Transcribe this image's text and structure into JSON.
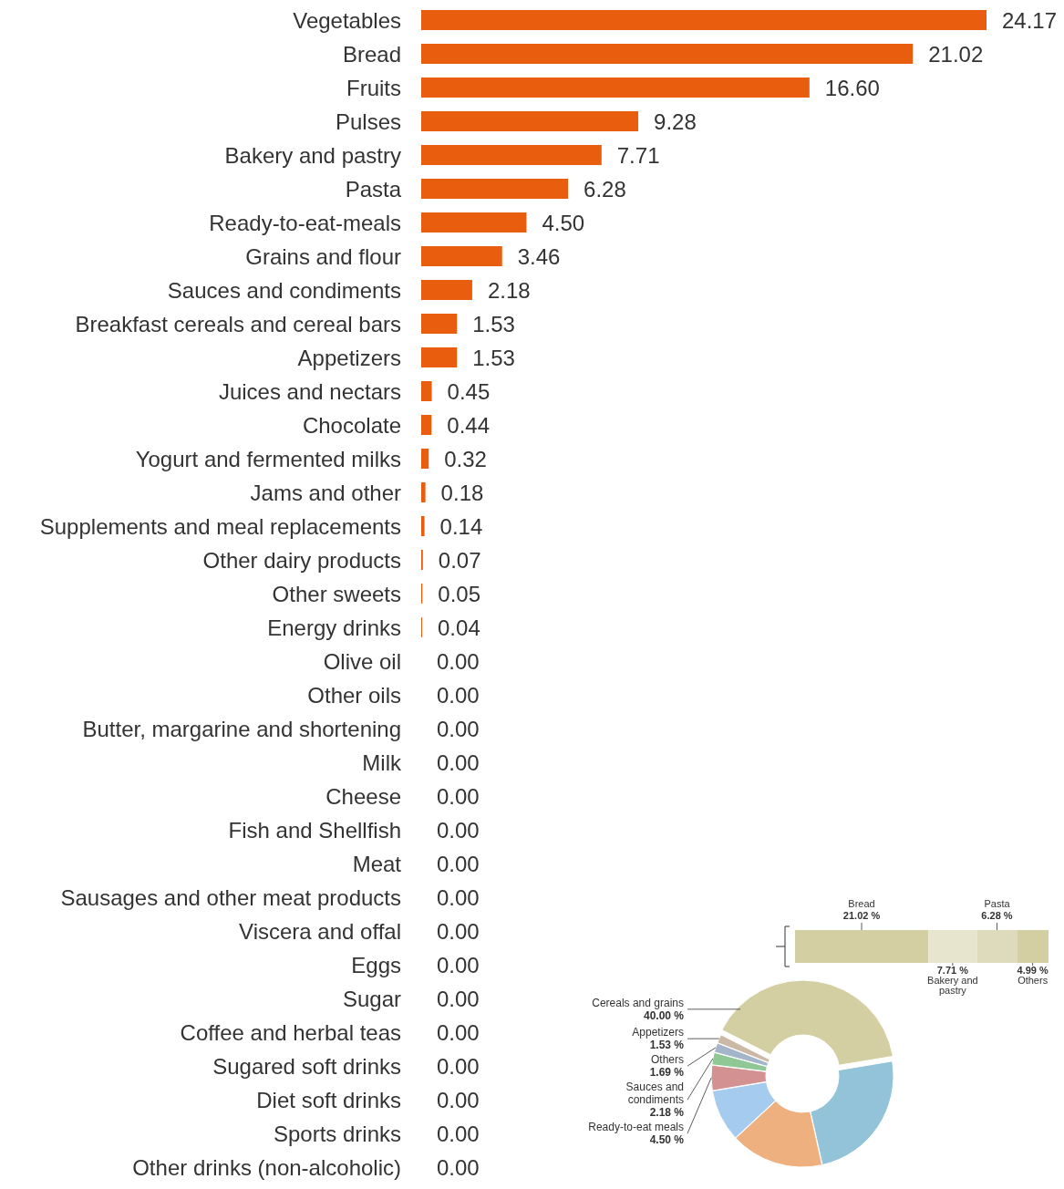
{
  "chart_data": [
    {
      "type": "bar",
      "orientation": "horizontal",
      "color": "#e85d0e",
      "categories": [
        "Vegetables",
        "Bread",
        "Fruits",
        "Pulses",
        "Bakery and pastry",
        "Pasta",
        "Ready-to-eat-meals",
        "Grains and flour",
        "Sauces and condiments",
        "Breakfast cereals and cereal bars",
        "Appetizers",
        "Juices and nectars",
        "Chocolate",
        "Yogurt and fermented milks",
        "Jams and other",
        "Supplements and meal replacements",
        "Other dairy products",
        "Other sweets",
        "Energy drinks",
        "Olive oil",
        "Other oils",
        "Butter, margarine and shortening",
        "Milk",
        "Cheese",
        "Fish and Shellfish",
        "Meat",
        "Sausages and other meat products",
        "Viscera and offal",
        "Eggs",
        "Sugar",
        "Coffee and herbal teas",
        "Sugared soft drinks",
        "Diet soft drinks",
        "Sports drinks",
        "Other drinks (non-alcoholic)"
      ],
      "values": [
        24.17,
        21.02,
        16.6,
        9.28,
        7.71,
        6.28,
        4.5,
        3.46,
        2.18,
        1.53,
        1.53,
        0.45,
        0.44,
        0.32,
        0.18,
        0.14,
        0.07,
        0.05,
        0.04,
        0,
        0,
        0,
        0,
        0,
        0,
        0,
        0,
        0,
        0,
        0,
        0,
        0,
        0,
        0,
        0
      ],
      "value_labels": [
        "24.17",
        "21.02",
        "16.60",
        "9.28",
        "7.71",
        "6.28",
        "4.50",
        "3.46",
        "2.18",
        "1.53",
        "1.53",
        "0.45",
        "0.44",
        "0.32",
        "0.18",
        "0.14",
        "0.07",
        "0.05",
        "0.04",
        "0.00",
        "0.00",
        "0.00",
        "0.00",
        "0.00",
        "0.00",
        "0.00",
        "0.00",
        "0.00",
        "0.00",
        "0.00",
        "0.00",
        "0.00",
        "0.00",
        "0.00",
        "0.00"
      ]
    },
    {
      "type": "donut",
      "categories": [
        "Cereals and grains",
        null,
        null,
        null,
        "Ready-to-eat meals",
        "Sauces and condiments",
        "Others",
        "Appetizers"
      ],
      "values": [
        40.0,
        24.17,
        16.6,
        9.28,
        4.5,
        2.18,
        1.69,
        1.53
      ],
      "value_labels": [
        "40.00 %",
        null,
        null,
        null,
        "4.50 %",
        "2.18 %",
        "1.69 %",
        "1.53 %"
      ],
      "colors": [
        "#d3cfa3",
        "#92c3d8",
        "#efb080",
        "#a5cbee",
        "#d39192",
        "#8fc795",
        "#a5b5c9",
        "#cbb9a6"
      ]
    },
    {
      "type": "bar",
      "orientation": "horizontal",
      "stacked": true,
      "categories": [
        null
      ],
      "series": [
        {
          "name": "Bread",
          "color": "#d3cfa3",
          "values": [
            21.02
          ],
          "value_labels": [
            "21.02 %"
          ]
        },
        {
          "name": "Bakery and pastry",
          "color": "#e8e5cf",
          "values": [
            7.71
          ],
          "value_labels": [
            "7.71 %"
          ]
        },
        {
          "name": "Pasta",
          "color": "#dedbbd",
          "values": [
            6.28
          ],
          "value_labels": [
            "6.28 %"
          ]
        },
        {
          "name": "Others",
          "color": "#d3cfa3",
          "values": [
            4.99
          ],
          "value_labels": [
            "4.99 %"
          ]
        }
      ]
    }
  ]
}
